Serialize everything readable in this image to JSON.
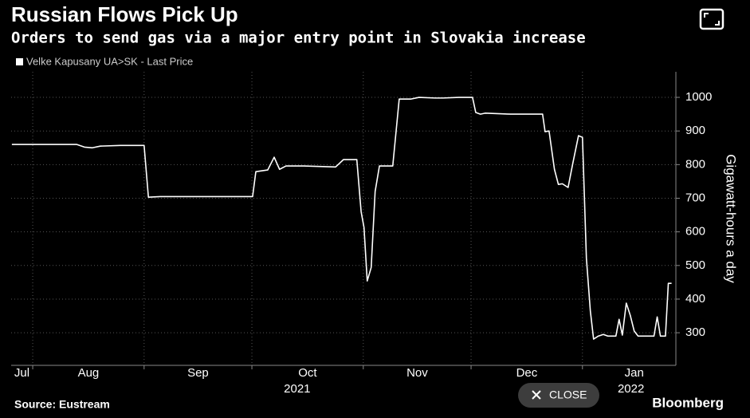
{
  "chart_data": {
    "type": "line",
    "title": "Russian Flows Pick Up",
    "subtitle": "Orders to send gas via a major entry point in Slovakia increase",
    "y_label": "Gigawatt-hours a day",
    "source": "Source: Eustream",
    "series": [
      {
        "name": "Velke Kapusany UA>SK - Last Price",
        "color": "#ffffff",
        "x": [
          25.2,
          43.2,
          45.4,
          47.6,
          49.8,
          55.4,
          62.0,
          63.2,
          66.5,
          79.8,
          92.2,
          93.1,
          96.4,
          98.2,
          99.7,
          101.5,
          106.4,
          115.3,
          117.5,
          121.2,
          122.4,
          123.2,
          124.1,
          125.2,
          126.3,
          127.5,
          131.2,
          133.0,
          136.3,
          138.5,
          143.0,
          145.2,
          149.6,
          153.4,
          154.3,
          155.6,
          156.9,
          164.0,
          172.9,
          173.6,
          174.7,
          176.2,
          177.3,
          178.4,
          180.0,
          181.3,
          182.9,
          184.0,
          185.1,
          186.2,
          187.1,
          188.4,
          189.8,
          191.1,
          193.3,
          194.2,
          195.1,
          196.2,
          197.3,
          198.4,
          199.5,
          203.9,
          204.8,
          205.7,
          207.1,
          207.9,
          208.8
        ],
        "values": [
          860,
          860,
          852,
          850,
          855,
          857,
          857,
          703,
          705,
          705,
          705,
          779,
          784,
          822,
          786,
          796,
          796,
          793,
          815,
          815,
          660,
          613,
          454,
          494,
          720,
          796,
          796,
          995,
          995,
          1000,
          998,
          998,
          1000,
          1000,
          955,
          950,
          953,
          950,
          950,
          898,
          900,
          786,
          741,
          743,
          732,
          803,
          886,
          881,
          521,
          364,
          281,
          290,
          295,
          290,
          290,
          340,
          293,
          388,
          352,
          305,
          290,
          290,
          347,
          290,
          290,
          447,
          447
        ]
      }
    ],
    "xlim": [
      25,
      210
    ],
    "xticks": [
      {
        "value": 28,
        "label": "Jul"
      },
      {
        "value": 46.5,
        "label": "Aug"
      },
      {
        "value": 77,
        "label": "Sep"
      },
      {
        "value": 107.5,
        "label": "Oct"
      },
      {
        "value": 138,
        "label": "Nov"
      },
      {
        "value": 168.5,
        "label": "Dec"
      },
      {
        "value": 198.4,
        "label": "Jan"
      }
    ],
    "xticks_year": [
      {
        "value": 104.6,
        "label": "2021"
      },
      {
        "value": 197.5,
        "label": "2022"
      }
    ],
    "xgrid": [
      31,
      62,
      92,
      123,
      153,
      184
    ],
    "ylim": [
      203,
      1076
    ],
    "yticks": [
      300,
      400,
      500,
      600,
      700,
      800,
      900,
      1000
    ],
    "grid": true
  },
  "ui": {
    "close_button": "CLOSE",
    "brand": "Bloomberg"
  }
}
